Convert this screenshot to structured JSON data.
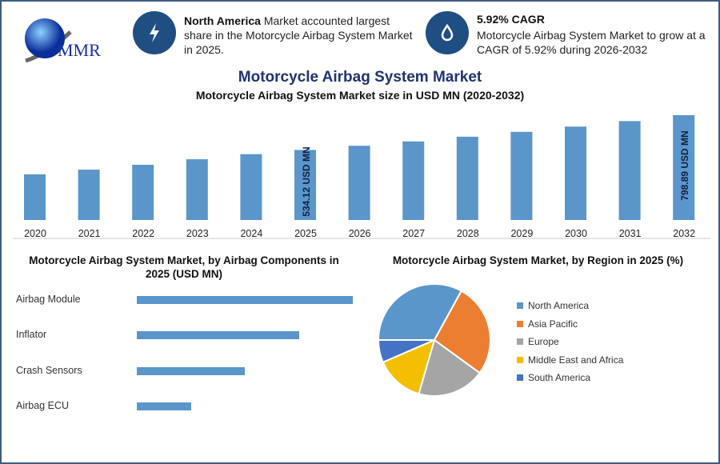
{
  "header": {
    "logo_text": "MMR",
    "info1": {
      "bold": "North America",
      "text": " Market accounted largest share in the Motorcycle Airbag System Market in 2025.",
      "icon": "lightning-icon"
    },
    "info2": {
      "bold": "5.92% CAGR",
      "text": "Motorcycle Airbag System Market to grow at a CAGR of 5.92% during 2026-2032",
      "icon": "drop-icon"
    }
  },
  "title": "Motorcycle Airbag System Market",
  "colors": {
    "bar": "#5b96cb",
    "icon_circle": "#1f4e83",
    "title": "#1f3470"
  },
  "chart_data": [
    {
      "type": "bar",
      "title": "Motorcycle Airbag System Market size in USD MN (2020-2032)",
      "categories": [
        "2020",
        "2021",
        "2022",
        "2023",
        "2024",
        "2025",
        "2026",
        "2027",
        "2028",
        "2029",
        "2030",
        "2031",
        "2032"
      ],
      "values": [
        348,
        384,
        421,
        463,
        502,
        534.12,
        566,
        599,
        635,
        672,
        712,
        754,
        798.89
      ],
      "data_labels": {
        "2025": "534.12 USD MN",
        "2032": "798.89 USD MN"
      },
      "ylim": [
        0,
        820
      ],
      "grid": false
    },
    {
      "type": "bar",
      "orientation": "horizontal",
      "title": "Motorcycle Airbag System Market, by Airbag Components in 2025 (USD MN)",
      "categories": [
        "Airbag Module",
        "Inflator",
        "Crash Sensors",
        "Airbag ECU"
      ],
      "values": [
        4,
        3,
        2,
        1
      ],
      "grid": false
    },
    {
      "type": "pie",
      "title": "Motorcycle Airbag System Market, by Region in 2025 (%)",
      "categories": [
        "North America",
        "Asia Pacific",
        "Europe",
        "Middle East and Africa",
        "South America"
      ],
      "values": [
        33,
        27,
        19.5,
        14,
        6.5
      ],
      "colors": [
        "#5b96cb",
        "#ec7e31",
        "#a5a5a5",
        "#f4bf00",
        "#4472c4"
      ],
      "legend": "right"
    }
  ]
}
